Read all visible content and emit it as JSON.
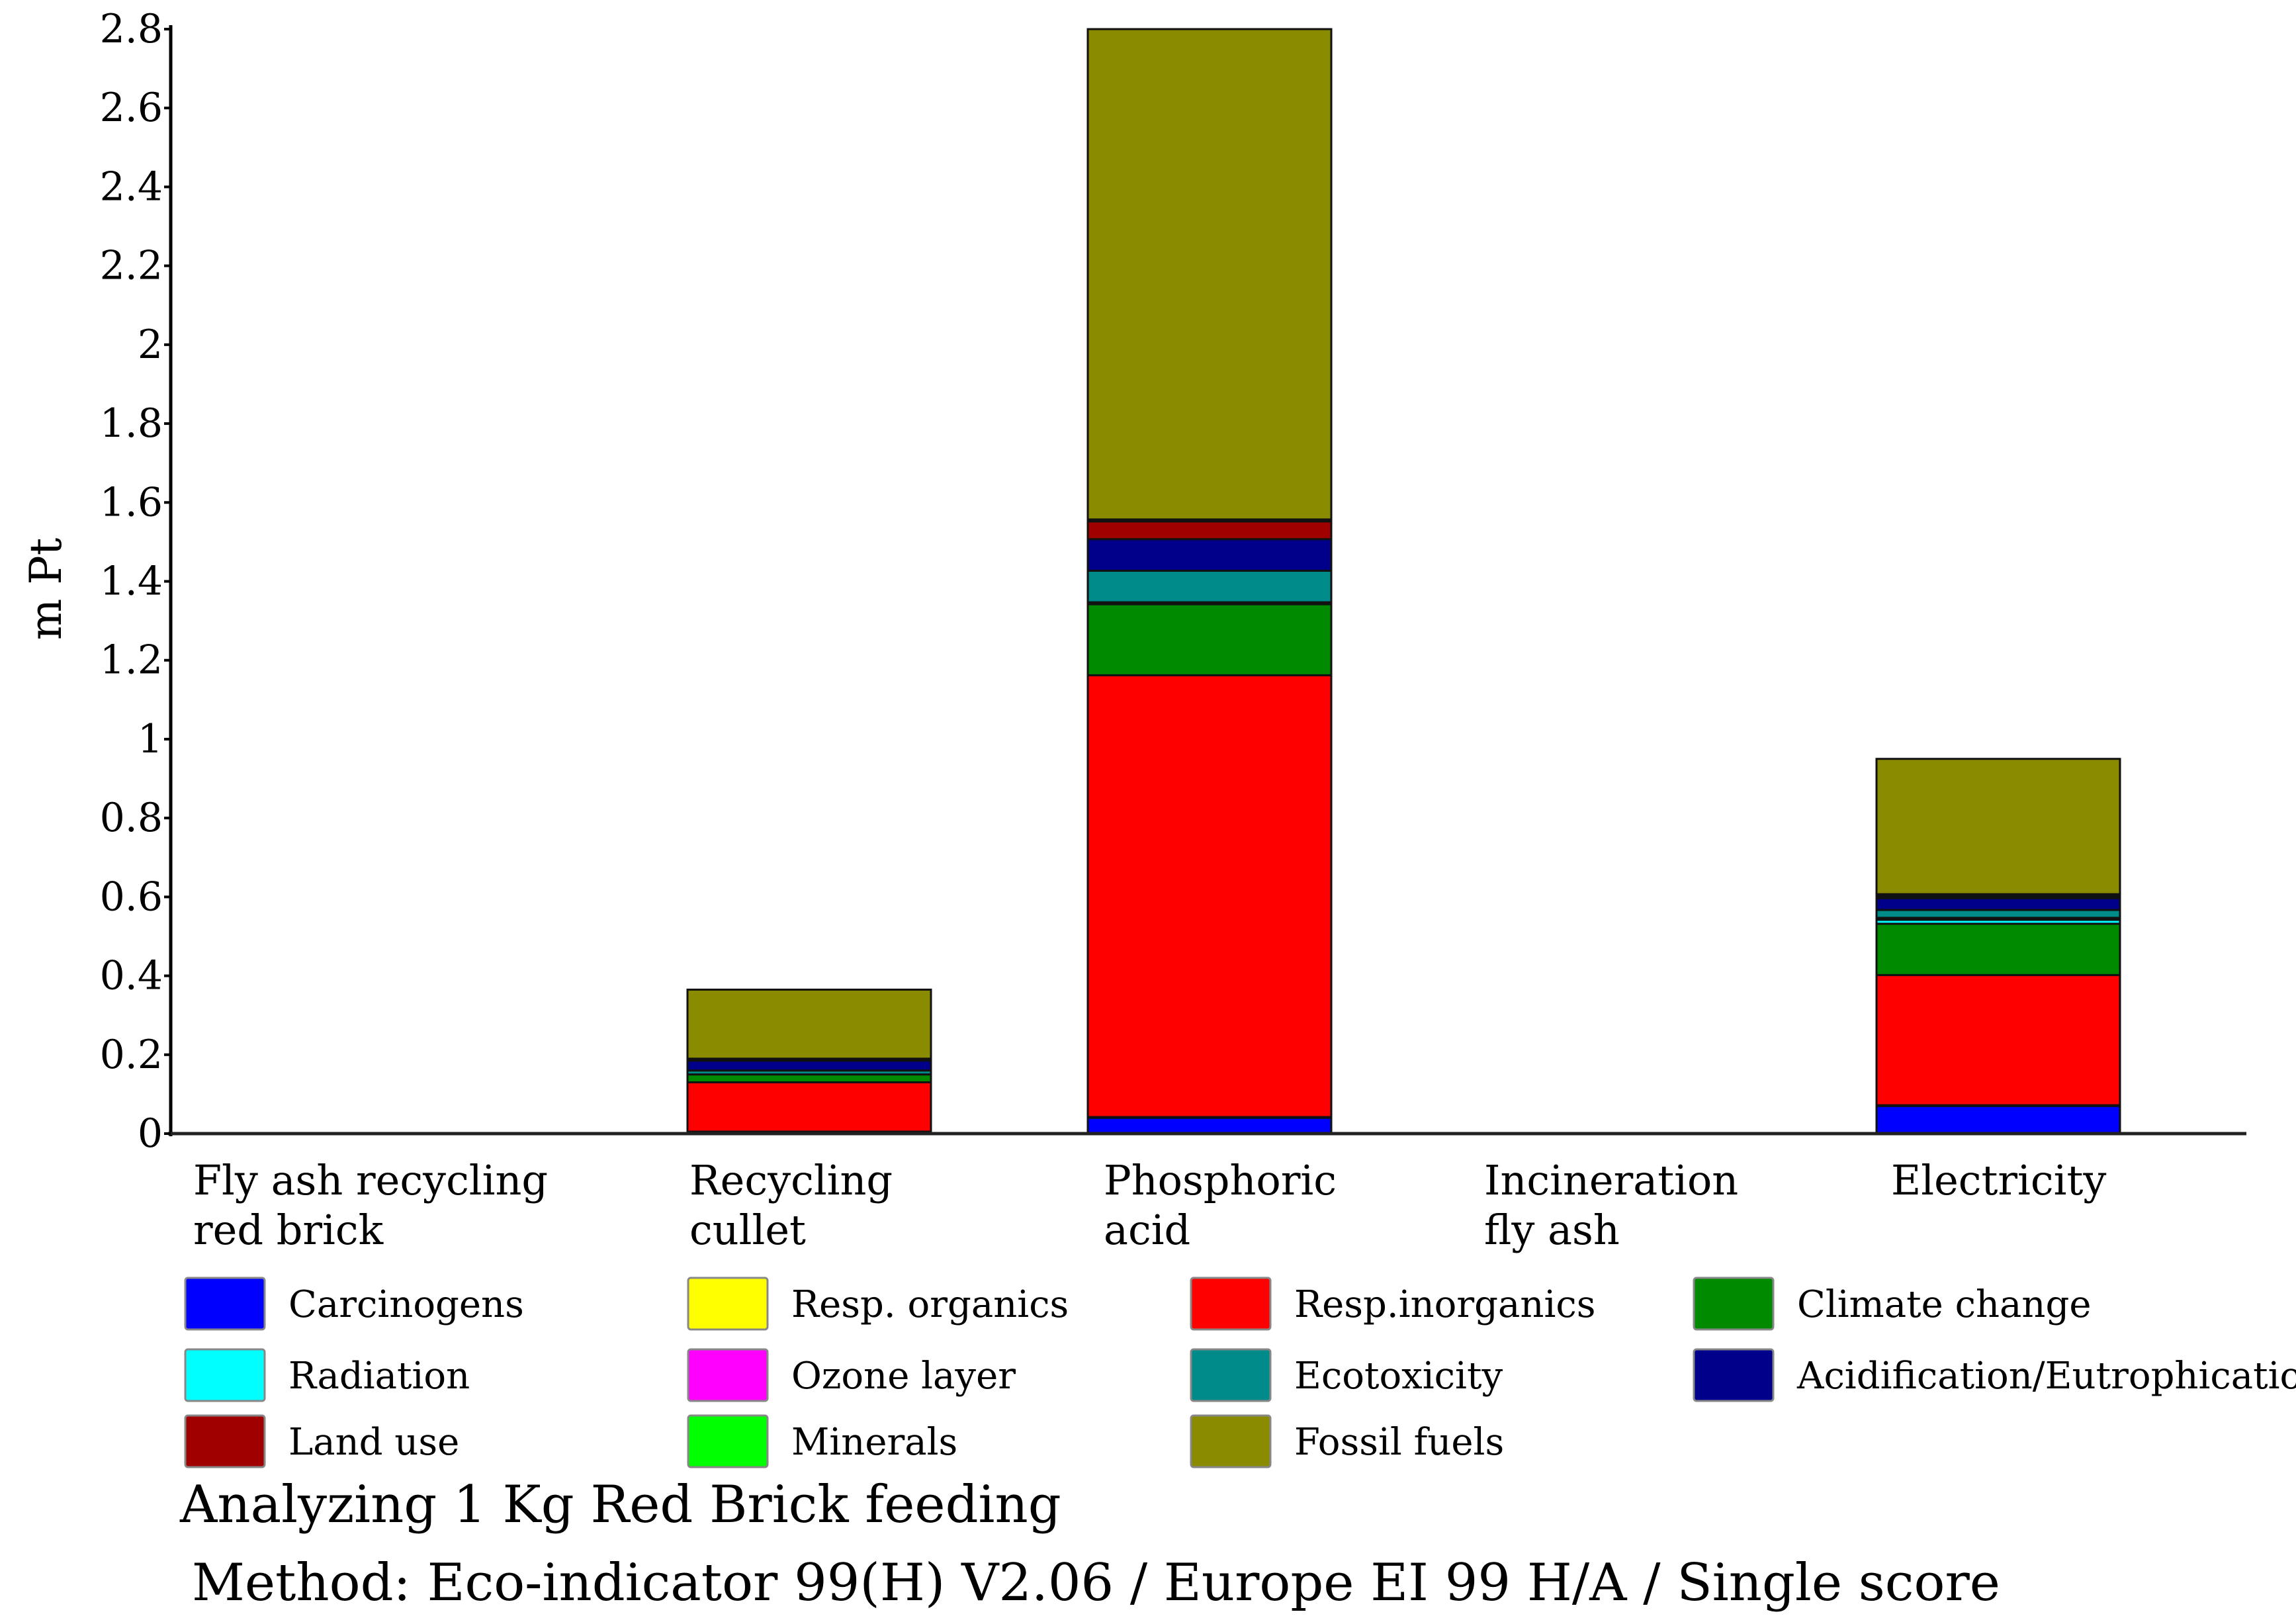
{
  "chart_data": {
    "type": "bar",
    "stacked": true,
    "ylabel": "m Pt",
    "xlabel": "",
    "ylim": [
      0,
      2.8
    ],
    "yticks": [
      {
        "v": 0,
        "label": "0"
      },
      {
        "v": 0.2,
        "label": "0.2"
      },
      {
        "v": 0.4,
        "label": "0.4"
      },
      {
        "v": 0.6,
        "label": "0.6"
      },
      {
        "v": 0.8,
        "label": "0.8"
      },
      {
        "v": 1.0,
        "label": "1"
      },
      {
        "v": 1.2,
        "label": "1.2"
      },
      {
        "v": 1.4,
        "label": "1.4"
      },
      {
        "v": 1.6,
        "label": "1.6"
      },
      {
        "v": 1.8,
        "label": "1.8"
      },
      {
        "v": 2.0,
        "label": "2"
      },
      {
        "v": 2.2,
        "label": "2.2"
      },
      {
        "v": 2.4,
        "label": "2.4"
      },
      {
        "v": 2.6,
        "label": "2.6"
      },
      {
        "v": 2.8,
        "label": "2.8"
      }
    ],
    "categories": [
      {
        "label_lines": [
          "Fly ash recycling",
          "red brick"
        ]
      },
      {
        "label_lines": [
          "Recycling",
          "cullet"
        ]
      },
      {
        "label_lines": [
          "Phosphoric",
          "acid"
        ]
      },
      {
        "label_lines": [
          "Incineration",
          "fly ash"
        ]
      },
      {
        "label_lines": [
          "Electricity"
        ]
      }
    ],
    "series": [
      {
        "name": "Carcinogens",
        "color": "#0000ff",
        "values": [
          0,
          0.005,
          0.04,
          0,
          0.07
        ]
      },
      {
        "name": "Resp. organics",
        "color": "#ffff00",
        "values": [
          0,
          0,
          0.002,
          0,
          0.002
        ]
      },
      {
        "name": "Resp.inorganics",
        "color": "#ff0000",
        "values": [
          0,
          0.125,
          1.12,
          0,
          0.33
        ]
      },
      {
        "name": "Climate  change",
        "color": "#008a00",
        "values": [
          0,
          0.02,
          0.18,
          0,
          0.13
        ]
      },
      {
        "name": "Radiation",
        "color": "#00ffff",
        "values": [
          0,
          0,
          0.003,
          0,
          0.01
        ]
      },
      {
        "name": "Ozone layer",
        "color": "#ff00ff",
        "values": [
          0,
          0,
          0.002,
          0,
          0.005
        ]
      },
      {
        "name": "Ecotoxicity",
        "color": "#008b8b",
        "values": [
          0,
          0.01,
          0.08,
          0,
          0.02
        ]
      },
      {
        "name": "Acidification/Eutrophication",
        "color": "#00008b",
        "values": [
          0,
          0.025,
          0.08,
          0,
          0.03
        ]
      },
      {
        "name": "Land use",
        "color": "#a00000",
        "values": [
          0,
          0.005,
          0.045,
          0,
          0.005
        ]
      },
      {
        "name": "Minerals",
        "color": "#00ff00",
        "values": [
          0,
          0,
          0.005,
          0,
          0.005
        ]
      },
      {
        "name": "Fossil  fuels",
        "color": "#8b8b00",
        "values": [
          0,
          0.175,
          1.243,
          0,
          0.343
        ]
      }
    ],
    "legend": {
      "placement": "bottom",
      "columns": [
        [
          "Carcinogens",
          "Radiation",
          "Land use"
        ],
        [
          "Resp. organics",
          "Ozone layer",
          "Minerals"
        ],
        [
          "Resp.inorganics",
          "Ecotoxicity",
          "Fossil  fuels"
        ],
        [
          "Climate  change",
          "Acidification/Eutrophication"
        ]
      ]
    }
  },
  "caption": {
    "line1": "Analyzing 1 Kg Red Brick feeding",
    "line2": "Method: Eco-indicator 99(H) V2.06 / Europe EI 99 H/A  /  Single score"
  }
}
